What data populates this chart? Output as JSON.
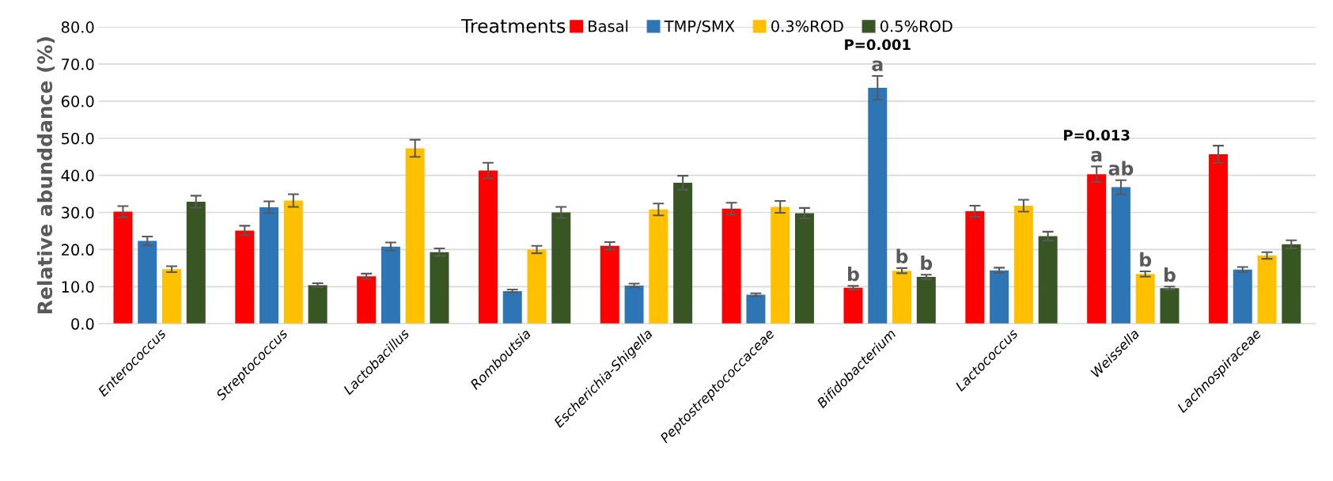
{
  "chart_data": {
    "type": "bar",
    "ylabel": "Relative abunddance (%)",
    "legend_title": "Treatments",
    "legend": "top",
    "categories": [
      "Enterococcus",
      "Streptococcus",
      "Lactobacillus",
      "Romboutsia",
      "Escherichia-Shigella",
      "Peptostreptococcaceae",
      "Bifidobacterium",
      "Lactococcus",
      "Weissella",
      "Lachnospiraceae"
    ],
    "series": [
      {
        "name": "Basal",
        "color": "#ff0000",
        "values": [
          30.2,
          25.1,
          12.8,
          41.3,
          21.0,
          31.0,
          9.7,
          30.3,
          40.3,
          45.7
        ],
        "errors": [
          1.5,
          1.3,
          0.7,
          2.1,
          1.0,
          1.6,
          0.5,
          1.5,
          2.1,
          2.3
        ]
      },
      {
        "name": "TMP/SMX",
        "color": "#2e75b6",
        "values": [
          22.3,
          31.4,
          20.8,
          8.8,
          10.3,
          7.8,
          63.6,
          14.4,
          36.8,
          14.6
        ],
        "errors": [
          1.2,
          1.6,
          1.1,
          0.4,
          0.5,
          0.4,
          3.2,
          0.7,
          1.9,
          0.7
        ]
      },
      {
        "name": "0.3%ROD",
        "color": "#ffc000",
        "values": [
          14.7,
          33.2,
          47.3,
          20.0,
          30.8,
          31.5,
          14.3,
          31.8,
          13.4,
          18.4
        ],
        "errors": [
          0.8,
          1.7,
          2.3,
          1.0,
          1.6,
          1.6,
          0.7,
          1.6,
          0.7,
          0.9
        ]
      },
      {
        "name": "0.5%ROD",
        "color": "#375623",
        "values": [
          32.9,
          10.4,
          19.3,
          30.0,
          38.0,
          29.8,
          12.6,
          23.6,
          9.6,
          21.4
        ],
        "errors": [
          1.6,
          0.5,
          1.0,
          1.5,
          1.9,
          1.4,
          0.6,
          1.2,
          0.4,
          1.1
        ]
      }
    ],
    "ylim": [
      0,
      80
    ],
    "yticks": [
      {
        "value": 0,
        "label": "0.0"
      },
      {
        "value": 10,
        "label": "10.0"
      },
      {
        "value": 20,
        "label": "20.0"
      },
      {
        "value": 30,
        "label": "30.0"
      },
      {
        "value": 40,
        "label": "40.0"
      },
      {
        "value": 50,
        "label": "50.0"
      },
      {
        "value": 60,
        "label": "60.0"
      },
      {
        "value": 70,
        "label": "70.0"
      },
      {
        "value": 80,
        "label": "80.0"
      }
    ],
    "grid": "y",
    "annotations": [
      {
        "text": "b",
        "x": "Bifidobacterium",
        "y": 9.7
      },
      {
        "text": "b",
        "x": "Bifidobacterium",
        "y": 14.3
      },
      {
        "text": "b",
        "x": "Bifidobacterium",
        "y": 12.6
      },
      "a",
      "P=0.001",
      {
        "text": "b",
        "x": "Weissella",
        "y": 13.4
      },
      {
        "text": "b",
        "x": "Weissella",
        "y": 9.6
      },
      "ab",
      "a",
      "P=0.013"
    ]
  }
}
